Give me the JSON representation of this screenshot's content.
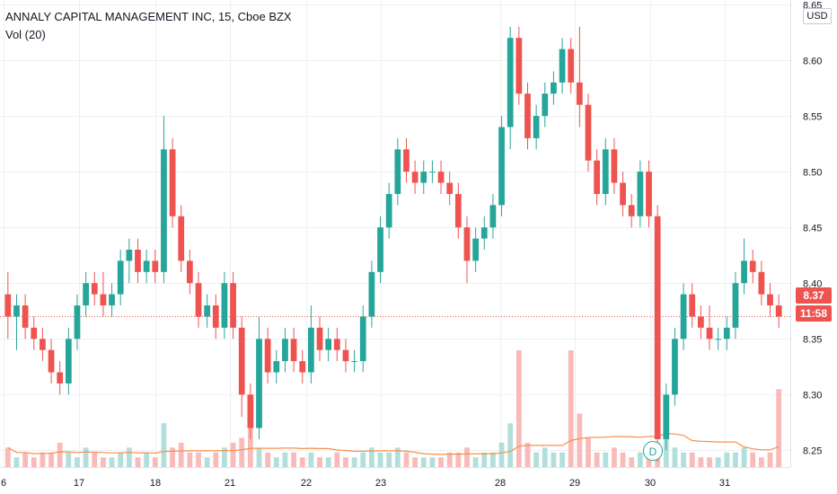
{
  "header": {
    "symbol_title": "ANNALY CAPITAL MANAGEMENT INC, 15, Cboe BZX",
    "volume_label": "Vol (20)"
  },
  "currency": "USD",
  "last_price": "8.37",
  "countdown": "11:58",
  "dividend_marker": "D",
  "colors": {
    "up": "#26a69a",
    "down": "#ef5350",
    "volume_up": "#b2dfdb",
    "volume_down": "#f8bbb9",
    "volume_ma": "#f7904b",
    "grid": "#eef0f3",
    "axis_text": "#131722"
  },
  "chart_data": {
    "type": "candlestick",
    "y_ticks": [
      "8.65",
      "8.60",
      "8.55",
      "8.50",
      "8.45",
      "8.40",
      "8.35",
      "8.30",
      "8.25"
    ],
    "ylim": [
      8.235,
      8.654
    ],
    "x_ticks": [
      "6",
      "17",
      "18",
      "21",
      "22",
      "23",
      "28",
      "29",
      "30",
      "31"
    ],
    "last_price_line": 8.37,
    "candles": [
      [
        8.39,
        8.41,
        8.35,
        8.37
      ],
      [
        8.37,
        8.39,
        8.34,
        8.38
      ],
      [
        8.38,
        8.39,
        8.35,
        8.36
      ],
      [
        8.36,
        8.37,
        8.34,
        8.35
      ],
      [
        8.35,
        8.36,
        8.33,
        8.34
      ],
      [
        8.34,
        8.35,
        8.31,
        8.32
      ],
      [
        8.32,
        8.33,
        8.3,
        8.31
      ],
      [
        8.31,
        8.36,
        8.3,
        8.35
      ],
      [
        8.35,
        8.39,
        8.34,
        8.38
      ],
      [
        8.38,
        8.41,
        8.37,
        8.4
      ],
      [
        8.4,
        8.41,
        8.38,
        8.39
      ],
      [
        8.39,
        8.41,
        8.37,
        8.38
      ],
      [
        8.38,
        8.4,
        8.37,
        8.39
      ],
      [
        8.39,
        8.43,
        8.38,
        8.42
      ],
      [
        8.42,
        8.44,
        8.4,
        8.43
      ],
      [
        8.43,
        8.44,
        8.4,
        8.41
      ],
      [
        8.41,
        8.43,
        8.4,
        8.42
      ],
      [
        8.42,
        8.43,
        8.4,
        8.41
      ],
      [
        8.41,
        8.55,
        8.4,
        8.52
      ],
      [
        8.52,
        8.53,
        8.45,
        8.46
      ],
      [
        8.46,
        8.47,
        8.41,
        8.42
      ],
      [
        8.42,
        8.43,
        8.39,
        8.4
      ],
      [
        8.4,
        8.41,
        8.36,
        8.37
      ],
      [
        8.37,
        8.39,
        8.36,
        8.38
      ],
      [
        8.38,
        8.39,
        8.35,
        8.36
      ],
      [
        8.36,
        8.41,
        8.35,
        8.4
      ],
      [
        8.4,
        8.41,
        8.35,
        8.36
      ],
      [
        8.36,
        8.37,
        8.28,
        8.3
      ],
      [
        8.3,
        8.31,
        8.26,
        8.27
      ],
      [
        8.27,
        8.37,
        8.26,
        8.35
      ],
      [
        8.35,
        8.36,
        8.31,
        8.32
      ],
      [
        8.32,
        8.34,
        8.31,
        8.33
      ],
      [
        8.33,
        8.36,
        8.32,
        8.35
      ],
      [
        8.35,
        8.36,
        8.32,
        8.33
      ],
      [
        8.33,
        8.34,
        8.31,
        8.32
      ],
      [
        8.32,
        8.38,
        8.31,
        8.36
      ],
      [
        8.36,
        8.37,
        8.33,
        8.34
      ],
      [
        8.34,
        8.36,
        8.33,
        8.35
      ],
      [
        8.35,
        8.36,
        8.33,
        8.34
      ],
      [
        8.34,
        8.35,
        8.32,
        8.33
      ],
      [
        8.33,
        8.34,
        8.32,
        8.33
      ],
      [
        8.33,
        8.38,
        8.32,
        8.37
      ],
      [
        8.37,
        8.42,
        8.36,
        8.41
      ],
      [
        8.41,
        8.46,
        8.4,
        8.45
      ],
      [
        8.45,
        8.49,
        8.44,
        8.48
      ],
      [
        8.48,
        8.53,
        8.47,
        8.52
      ],
      [
        8.52,
        8.53,
        8.49,
        8.5
      ],
      [
        8.5,
        8.51,
        8.48,
        8.49
      ],
      [
        8.49,
        8.51,
        8.48,
        8.5
      ],
      [
        8.5,
        8.51,
        8.49,
        8.5
      ],
      [
        8.5,
        8.51,
        8.48,
        8.49
      ],
      [
        8.49,
        8.5,
        8.47,
        8.48
      ],
      [
        8.48,
        8.49,
        8.44,
        8.45
      ],
      [
        8.45,
        8.46,
        8.4,
        8.42
      ],
      [
        8.42,
        8.45,
        8.41,
        8.44
      ],
      [
        8.44,
        8.46,
        8.43,
        8.45
      ],
      [
        8.45,
        8.48,
        8.44,
        8.47
      ],
      [
        8.47,
        8.55,
        8.46,
        8.54
      ],
      [
        8.54,
        8.63,
        8.52,
        8.62
      ],
      [
        8.62,
        8.63,
        8.56,
        8.57
      ],
      [
        8.57,
        8.58,
        8.52,
        8.53
      ],
      [
        8.53,
        8.56,
        8.52,
        8.55
      ],
      [
        8.55,
        8.58,
        8.54,
        8.57
      ],
      [
        8.57,
        8.59,
        8.56,
        8.58
      ],
      [
        8.58,
        8.62,
        8.57,
        8.61
      ],
      [
        8.61,
        8.62,
        8.57,
        8.58
      ],
      [
        8.58,
        8.63,
        8.54,
        8.56
      ],
      [
        8.56,
        8.57,
        8.5,
        8.51
      ],
      [
        8.51,
        8.52,
        8.47,
        8.48
      ],
      [
        8.48,
        8.53,
        8.47,
        8.52
      ],
      [
        8.52,
        8.53,
        8.48,
        8.49
      ],
      [
        8.49,
        8.5,
        8.46,
        8.47
      ],
      [
        8.47,
        8.48,
        8.45,
        8.46
      ],
      [
        8.46,
        8.51,
        8.45,
        8.5
      ],
      [
        8.5,
        8.51,
        8.45,
        8.46
      ],
      [
        8.46,
        8.47,
        8.24,
        8.26
      ],
      [
        8.26,
        8.31,
        8.25,
        8.3
      ],
      [
        8.3,
        8.36,
        8.29,
        8.35
      ],
      [
        8.35,
        8.4,
        8.34,
        8.39
      ],
      [
        8.39,
        8.4,
        8.36,
        8.37
      ],
      [
        8.37,
        8.38,
        8.35,
        8.36
      ],
      [
        8.36,
        8.38,
        8.34,
        8.35
      ],
      [
        8.35,
        8.36,
        8.34,
        8.35
      ],
      [
        8.35,
        8.37,
        8.34,
        8.36
      ],
      [
        8.36,
        8.41,
        8.35,
        8.4
      ],
      [
        8.4,
        8.44,
        8.39,
        8.42
      ],
      [
        8.42,
        8.43,
        8.4,
        8.41
      ],
      [
        8.41,
        8.42,
        8.38,
        8.39
      ],
      [
        8.39,
        8.4,
        8.37,
        8.38
      ],
      [
        8.38,
        8.39,
        8.36,
        8.37
      ]
    ],
    "volume": [
      4,
      2,
      3,
      2,
      3,
      3,
      5,
      3,
      2,
      4,
      3,
      2,
      2,
      3,
      4,
      2,
      3,
      2,
      9,
      4,
      5,
      3,
      3,
      2,
      3,
      4,
      5,
      6,
      8,
      4,
      3,
      2,
      3,
      3,
      2,
      3,
      2,
      2,
      3,
      2,
      2,
      3,
      4,
      3,
      3,
      4,
      3,
      2,
      2,
      2,
      2,
      3,
      3,
      4,
      2,
      3,
      3,
      5,
      9,
      24,
      5,
      3,
      4,
      3,
      3,
      24,
      11,
      6,
      3,
      3,
      4,
      3,
      2,
      3,
      4,
      5,
      13,
      4,
      3,
      3,
      2,
      2,
      2,
      3,
      3,
      4,
      3,
      2,
      3,
      16
    ]
  }
}
